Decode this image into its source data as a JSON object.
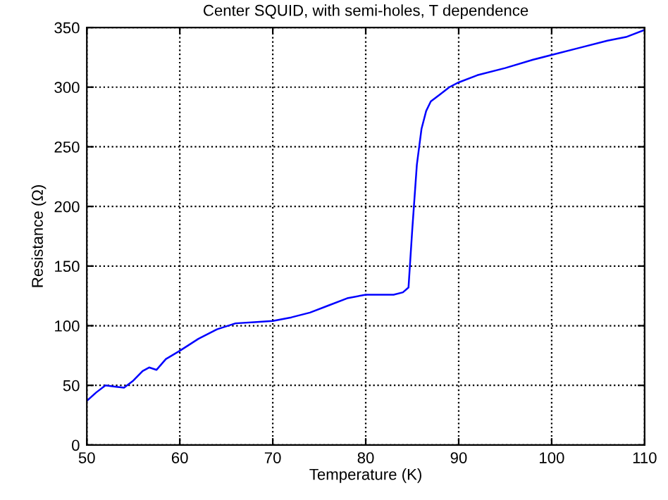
{
  "chart_data": {
    "type": "line",
    "title": "Center SQUID, with semi-holes, T dependence",
    "xlabel": "Temperature (K)",
    "ylabel": "Resistance (Ω)",
    "x": [
      50,
      51,
      52,
      53,
      54,
      55,
      56,
      56.7,
      57.5,
      58.5,
      60,
      62,
      64,
      66,
      68,
      70,
      72,
      74,
      76,
      78,
      80,
      83,
      84,
      84.6,
      85,
      85.5,
      86,
      86.5,
      87,
      88,
      89,
      90,
      92,
      95,
      98,
      100,
      103,
      106,
      108,
      110
    ],
    "series": [
      {
        "color": "#0000ff",
        "values": [
          37,
          44,
          50,
          49,
          48,
          54,
          62,
          65,
          63,
          72,
          79,
          89,
          97,
          102,
          103,
          104,
          107,
          111,
          117,
          123,
          126,
          126,
          128,
          132,
          180,
          235,
          265,
          280,
          288,
          294,
          300,
          304,
          310,
          316,
          323,
          327,
          333,
          339,
          342,
          348
        ]
      }
    ],
    "xlim": [
      50,
      110
    ],
    "ylim": [
      0,
      350
    ],
    "xticks": [
      50,
      60,
      70,
      80,
      90,
      100,
      110
    ],
    "yticks": [
      0,
      50,
      100,
      150,
      200,
      250,
      300,
      350
    ],
    "grid": true,
    "line_style": "solid",
    "marker": "none"
  }
}
